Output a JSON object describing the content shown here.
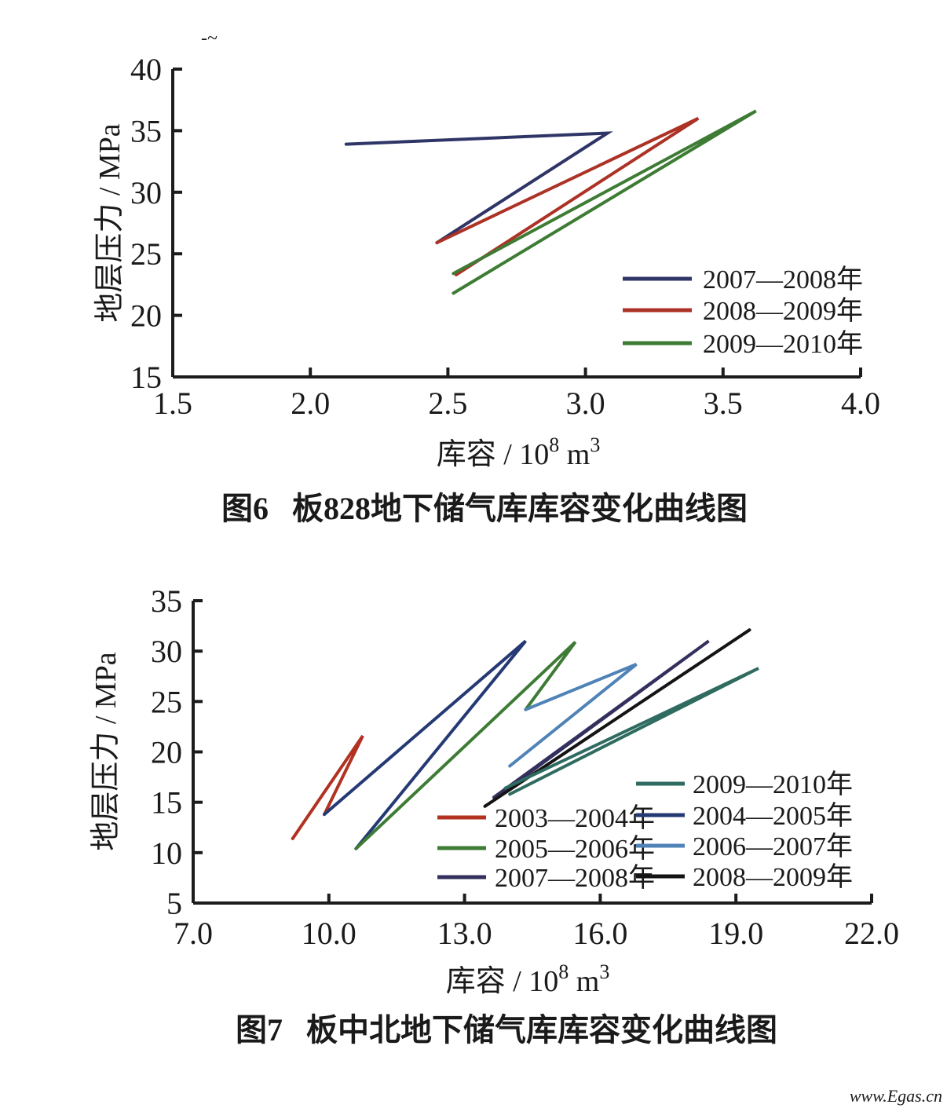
{
  "page": {
    "background": "#ffffff",
    "scan_artifact": "-~",
    "watermark": "www.Egas.cn",
    "watermark_color": "#f2a6ad"
  },
  "chart_data": [
    {
      "type": "line",
      "figure_label": "图6",
      "figure_title": "板828地下储气库库容变化曲线图",
      "ylabel": "地层压力 / MPa",
      "xlabel_parts": [
        "库容 / 10",
        "8",
        " m",
        "3"
      ],
      "xlim": [
        1.5,
        4.0
      ],
      "ylim": [
        15,
        40
      ],
      "x_ticks": [
        "1.5",
        "2.0",
        "2.5",
        "3.0",
        "3.5",
        "4.0"
      ],
      "y_ticks": [
        "15",
        "20",
        "25",
        "30",
        "35",
        "40"
      ],
      "grid": false,
      "legend_position": "inside right",
      "series": [
        {
          "name": "2007—2008年",
          "color": "#2f3566",
          "points": [
            [
              2.13,
              33.9
            ],
            [
              3.08,
              34.8
            ],
            [
              2.46,
              25.9
            ]
          ]
        },
        {
          "name": "2008—2009年",
          "color": "#ad3226",
          "points": [
            [
              2.46,
              25.9
            ],
            [
              3.41,
              36.0
            ],
            [
              2.53,
              23.3
            ]
          ]
        },
        {
          "name": "2009—2010年",
          "color": "#3e7c35",
          "points": [
            [
              2.52,
              23.4
            ],
            [
              3.62,
              36.6
            ],
            [
              2.52,
              21.8
            ]
          ]
        }
      ]
    },
    {
      "type": "line",
      "figure_label": "图7",
      "figure_title": "板中北地下储气库库容变化曲线图",
      "ylabel": "地层压力 / MPa",
      "xlabel_parts": [
        "库容 / 10",
        "8",
        " m",
        "3"
      ],
      "xlim": [
        7.0,
        22.0
      ],
      "ylim": [
        5,
        35
      ],
      "x_ticks": [
        "7.0",
        "10.0",
        "13.0",
        "16.0",
        "19.0",
        "22.0"
      ],
      "y_ticks": [
        "5",
        "10",
        "15",
        "20",
        "25",
        "30",
        "35"
      ],
      "grid": false,
      "legend_position": "inside right, two columns",
      "series": [
        {
          "name": "2003—2004年",
          "color": "#b23222",
          "points": [
            [
              9.2,
              11.4
            ],
            [
              10.75,
              21.6
            ],
            [
              9.9,
              13.8
            ]
          ]
        },
        {
          "name": "2004—2005年",
          "color": "#253a75",
          "points": [
            [
              9.9,
              13.8
            ],
            [
              14.35,
              31.0
            ],
            [
              10.6,
              10.4
            ]
          ]
        },
        {
          "name": "2005—2006年",
          "color": "#3e7c35",
          "points": [
            [
              10.6,
              10.4
            ],
            [
              15.45,
              30.9
            ],
            [
              14.35,
              24.2
            ]
          ]
        },
        {
          "name": "2006—2007年",
          "color": "#4f83b7",
          "points": [
            [
              14.35,
              24.2
            ],
            [
              16.8,
              28.7
            ],
            [
              14.0,
              18.6
            ]
          ]
        },
        {
          "name": "2007—2008年",
          "color": "#33305e",
          "points": [
            [
              13.65,
              15.5
            ],
            [
              18.4,
              31.0
            ],
            [
              13.85,
              16.0
            ]
          ]
        },
        {
          "name": "2008—2009年",
          "color": "#141414",
          "points": [
            [
              13.45,
              14.6
            ],
            [
              19.3,
              32.1
            ]
          ]
        },
        {
          "name": "2009—2010年",
          "color": "#2f6b60",
          "points": [
            [
              13.9,
              16.4
            ],
            [
              19.5,
              28.3
            ],
            [
              14.0,
              15.8
            ]
          ]
        }
      ]
    }
  ]
}
